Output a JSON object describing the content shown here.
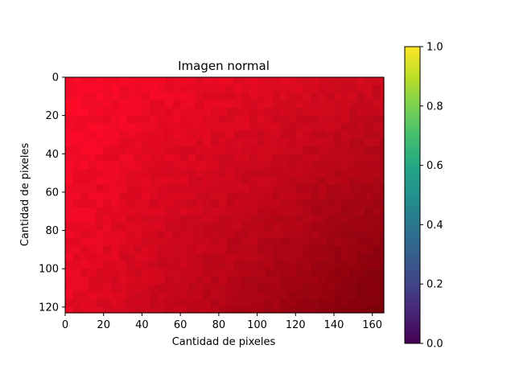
{
  "chart_data": {
    "type": "heatmap",
    "title": "Imagen normal",
    "xlabel": "Cantidad de pixeles",
    "ylabel": "Cantidad de pixeles",
    "image_width": 166,
    "image_height": 123,
    "xlim": [
      0,
      166
    ],
    "ylim": [
      123,
      0
    ],
    "xticks": [
      0,
      20,
      40,
      60,
      80,
      100,
      120,
      140,
      160
    ],
    "yticks": [
      0,
      20,
      40,
      60,
      80,
      100,
      120
    ],
    "image_colors": {
      "top_left": "#ff0a28",
      "top_right": "#cc0a1c",
      "bottom_left": "#e60a22",
      "bottom_right": "#7a0008"
    },
    "colorbar": {
      "colormap": "viridis",
      "range": [
        0,
        1
      ],
      "ticks": [
        "0.0",
        "0.2",
        "0.4",
        "0.6",
        "0.8",
        "1.0"
      ]
    }
  }
}
